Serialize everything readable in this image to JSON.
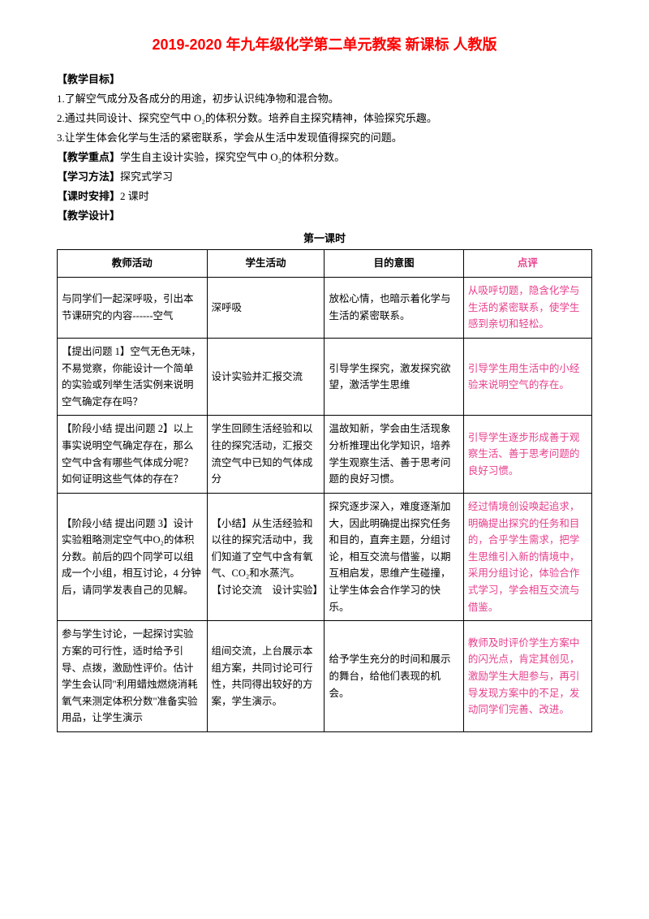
{
  "title": "2019-2020 年九年级化学第二单元教案 新课标 人教版",
  "labels": {
    "objective": "【教学目标】",
    "focus": "【教学重点】",
    "method": "【学习方法】",
    "schedule": "【课时安排】",
    "design": "【教学设计】"
  },
  "objectives": {
    "item1": "1.了解空气成分及各成分的用途，初步认识纯净物和混合物。",
    "item2": "2.通过共同设计、探究空气中 O₂的体积分数。培养自主探究精神，体验探究乐趣。",
    "item3": "3.让学生体会化学与生活的紧密联系，学会从生活中发现值得探究的问题。"
  },
  "focus_text": "学生自主设计实验，探究空气中 O₂的体积分数。",
  "method_text": "探究式学习",
  "schedule_text": "2 课时",
  "lesson1_title": "第一课时",
  "headers": {
    "h1": "教师活动",
    "h2": "学生活动",
    "h3": "目的意图",
    "h4": "点评"
  },
  "rows": [
    {
      "c1": "与同学们一起深呼吸，引出本节课研究的内容------空气",
      "c2": "深呼吸",
      "c3": "放松心情，也暗示着化学与生活的紧密联系。",
      "c4": "    从吸呼切题，隐含化学与生活的紧密联系，使学生感到亲切和轻松。"
    },
    {
      "c1": "【提出问题 1】空气无色无味，不易觉察，你能设计一个简单的实验或列举生活实例来说明空气确定存在吗？",
      "c2": "设计实验并汇报交流",
      "c3": "    引导学生探究，激发探究欲望，激活学生思维",
      "c4": "    引导学生用生活中的小经验来说明空气的存在。"
    },
    {
      "c1": "【阶段小结 提出问题 2】以上事实说明空气确定存在，那么空气中含有哪些气体成分呢？如何证明这些气体的存在？",
      "c2": "学生回顾生活经验和以往的探究活动，汇报交流空气中已知的气体成分",
      "c3": "温故知新，学会由生活现象分析推理出化学知识，培养学生观察生活、善于思考问题的良好习惯。",
      "c4": "    引导学生逐步形成善于观察生活、善于思考问题的良好习惯。"
    },
    {
      "c1": "【阶段小结 提出问题 3】设计实验粗略测定空气中O₂的体积分数。前后的四个同学可以组成一个小组，相互讨论，4 分钟后，请同学发表自己的见解。",
      "c2": "【小结】从生活经验和以往的探究活动中，我们知道了空气中含有氧气、CO₂和水蒸汽。\n【讨论交流　设计实验】",
      "c3": "探究逐步深入，难度逐渐加大，因此明确提出探究任务和目的，直奔主题，分组讨论，相互交流与借鉴，以期互相启发，思维产生碰撞，让学生体会合作学习的快乐。",
      "c4": "    经过情境创设唤起追求，明确提出探究的任务和目的，合乎学生需求，把学生思维引入新的情境中，采用分组讨论，体验合作式学习，学会相互交流与借鉴。"
    },
    {
      "c1": "参与学生讨论，一起探讨实验方案的可行性，适时给予引导、点拨，激励性评价。估计学生会认同\"利用蜡烛燃烧消耗氧气来测定体积分数\"准备实验用品，让学生演示",
      "c2": "组间交流，上台展示本组方案，共同讨论可行性，共同得出较好的方案，学生演示。",
      "c3": "给予学生充分的时间和展示的舞台，给他们表现的机会。",
      "c4": "教师及时评价学生方案中的闪光点，肯定其创见，激励学生大胆参与，再引导发现方案中的不足，发动同学们完善、改进。"
    }
  ]
}
